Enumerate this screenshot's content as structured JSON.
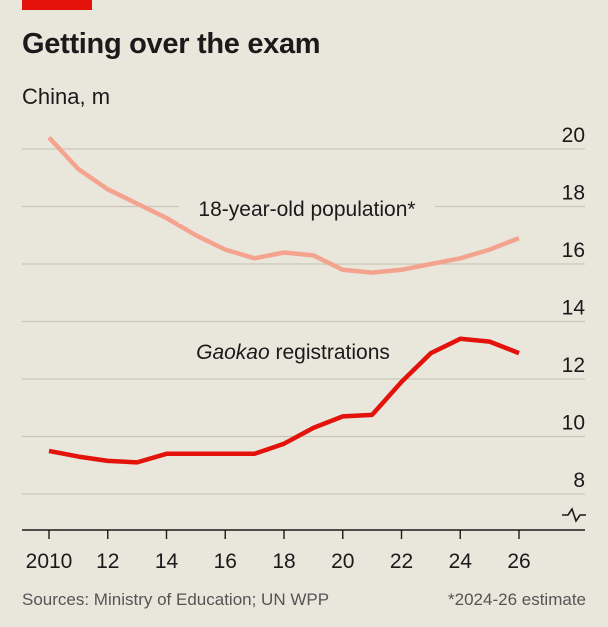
{
  "header": {
    "title": "Getting over the exam",
    "subtitle": "China, m"
  },
  "footer": {
    "sources": "Sources: Ministry of Education; UN WPP",
    "note": "*2024-26 estimate"
  },
  "colors": {
    "background": "#e9e6dc",
    "accent": "#e3120b",
    "population": "#f4a48e",
    "registrations": "#e3120b",
    "grid": "#c9c5b9",
    "axis": "#1a1a1a"
  },
  "chart_data": {
    "type": "line",
    "title": "Getting over the exam",
    "subtitle": "China, m",
    "x_tick_labels": [
      "2010",
      "12",
      "14",
      "16",
      "18",
      "20",
      "22",
      "24",
      "26"
    ],
    "x_ticks": [
      2010,
      2012,
      2014,
      2016,
      2018,
      2020,
      2022,
      2024,
      2026
    ],
    "xlim": [
      2010,
      2026
    ],
    "y_ticks": [
      8,
      10,
      12,
      14,
      16,
      18,
      20
    ],
    "ylim": [
      7,
      20
    ],
    "y_axis_side": "right",
    "y_axis_break": true,
    "grid": true,
    "series": [
      {
        "name": "18-year-old population*",
        "color": "#f4a48e",
        "x": [
          2010,
          2011,
          2012,
          2013,
          2014,
          2015,
          2016,
          2017,
          2018,
          2019,
          2020,
          2021,
          2022,
          2023,
          2024,
          2025,
          2026
        ],
        "y": [
          20.4,
          19.3,
          18.6,
          18.1,
          17.6,
          17.0,
          16.5,
          16.2,
          16.4,
          16.3,
          15.8,
          15.7,
          15.8,
          16.0,
          16.2,
          16.5,
          16.9
        ]
      },
      {
        "name": "Gaokao registrations",
        "name_italic": "Gaokao",
        "name_rest": " registrations",
        "color": "#e3120b",
        "x": [
          2010,
          2011,
          2012,
          2013,
          2014,
          2015,
          2016,
          2017,
          2018,
          2019,
          2020,
          2021,
          2022,
          2023,
          2024,
          2025,
          2026
        ],
        "y": [
          9.5,
          9.3,
          9.15,
          9.1,
          9.4,
          9.4,
          9.4,
          9.4,
          9.75,
          10.3,
          10.7,
          10.75,
          11.9,
          12.9,
          13.4,
          13.3,
          12.9
        ]
      }
    ]
  }
}
